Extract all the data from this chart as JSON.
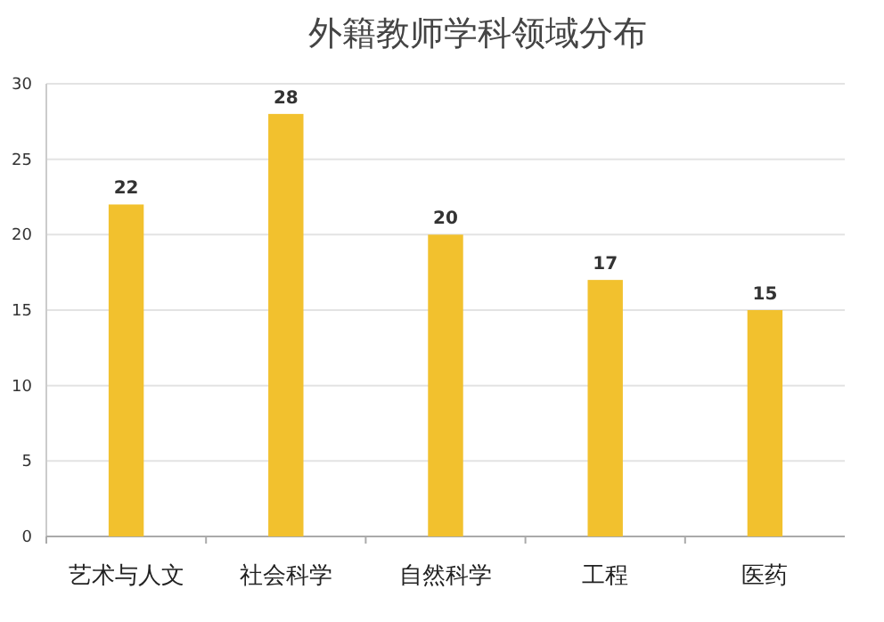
{
  "chart_data": {
    "type": "bar",
    "title": "外籍教师学科领域分布",
    "categories": [
      "艺术与人文",
      "社会科学",
      "自然科学",
      "工程",
      "医药"
    ],
    "values": [
      22,
      28,
      20,
      17,
      15
    ],
    "color": "#f2c12e",
    "ylim": [
      0,
      30
    ],
    "yticks": [
      0,
      5,
      10,
      15,
      20,
      25,
      30
    ],
    "grid": "y",
    "data_labels": true
  }
}
